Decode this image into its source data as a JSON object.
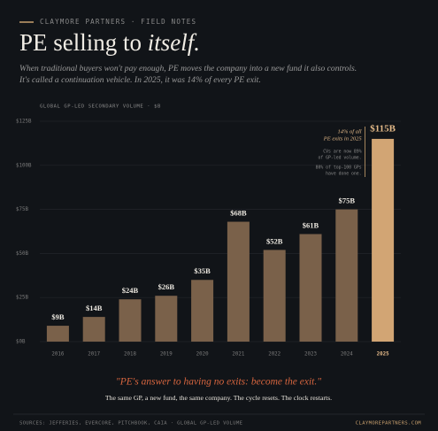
{
  "chart_data": {
    "type": "bar",
    "brand": "CLAYMORE PARTNERS · FIELD NOTES",
    "title": "PE selling to",
    "title_emphasis": "itself.",
    "subtitle": [
      "When traditional buyers won't pay enough, PE moves the company into a new fund it also controls.",
      "It's called a continuation vehicle. In 2025, it was 14% of every PE exit."
    ],
    "axis_label": "GLOBAL GP-LED SECONDARY VOLUME · $B",
    "categories": [
      "2016",
      "2017",
      "2018",
      "2019",
      "2020",
      "2021",
      "2022",
      "2023",
      "2024",
      "2025"
    ],
    "values": [
      9,
      14,
      24,
      26,
      35,
      68,
      52,
      61,
      75,
      115
    ],
    "value_labels": [
      "$9B",
      "$14B",
      "$24B",
      "$26B",
      "$35B",
      "$68B",
      "$52B",
      "$61B",
      "$75B",
      "$115B"
    ],
    "colors": [
      "#7a614a",
      "#7a614a",
      "#7a614a",
      "#7a614a",
      "#7a614a",
      "#7a614a",
      "#7a614a",
      "#7a614a",
      "#7a614a",
      "#d2a574"
    ],
    "ylim": [
      0,
      125
    ],
    "yticks": [
      {
        "value": 0,
        "label": "$0B"
      },
      {
        "value": 25,
        "label": "$25B"
      },
      {
        "value": 50,
        "label": "$50B"
      },
      {
        "value": 75,
        "label": "$75B"
      },
      {
        "value": 100,
        "label": "$100B"
      },
      {
        "value": 125,
        "label": "$125B"
      }
    ],
    "grid": true,
    "annotation": [
      "14% of all",
      "PE exits in 2025"
    ],
    "notes": [
      "CVs are now 89%",
      "of GP-led volume.",
      "80% of top-100 GPs",
      "have done one."
    ],
    "quote": "\"PE's answer to having no exits: become the exit.\"",
    "tagline": "The same GP, a new fund, the same company. The cycle resets. The clock restarts.",
    "sources": "SOURCES: JEFFERIES, EVERCORE, PITCHBOOK, CAIA · GLOBAL GP-LED VOLUME",
    "url": "CLAYMOREPARTNERS.COM"
  }
}
